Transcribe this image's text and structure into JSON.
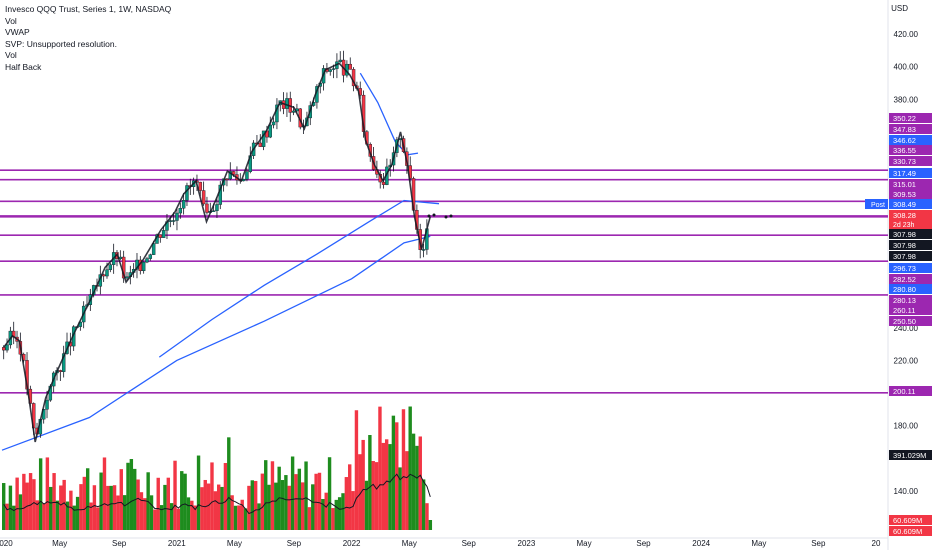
{
  "legend": {
    "title": "Invesco QQQ Trust, Series 1, 1W, NASDAQ",
    "lines": [
      "Vol",
      "VWAP",
      "SVP: Unsupported resolution.",
      "Vol",
      "Half Back"
    ]
  },
  "price_axis": {
    "currency": "USD",
    "ticks": [
      420,
      400,
      380,
      240,
      220,
      180,
      140
    ],
    "tick_labels": [
      "420.00",
      "400.00",
      "380.00",
      "240.00",
      "220.00",
      "180.00",
      "140.00"
    ]
  },
  "time_axis": {
    "labels": [
      {
        "label": "020",
        "t": 0.0
      },
      {
        "label": "May",
        "t": 0.33
      },
      {
        "label": "Sep",
        "t": 0.67
      },
      {
        "label": "2021",
        "t": 1.0
      },
      {
        "label": "May",
        "t": 1.33
      },
      {
        "label": "Sep",
        "t": 1.67
      },
      {
        "label": "2022",
        "t": 2.0
      },
      {
        "label": "May",
        "t": 2.33
      },
      {
        "label": "Sep",
        "t": 2.67
      },
      {
        "label": "2023",
        "t": 3.0
      },
      {
        "label": "May",
        "t": 3.33
      },
      {
        "label": "Sep",
        "t": 3.67
      },
      {
        "label": "2024",
        "t": 4.0
      },
      {
        "label": "May",
        "t": 4.33
      },
      {
        "label": "Sep",
        "t": 4.67
      },
      {
        "label": "20",
        "t": 5.0
      }
    ]
  },
  "price_labels": [
    {
      "text": "350.22",
      "price": 350.22,
      "color": "#9c27b0"
    },
    {
      "text": "347.83",
      "price": 347.83,
      "color": "#9c27b0"
    },
    {
      "text": "346.62",
      "price": 346.62,
      "color": "#2962ff"
    },
    {
      "text": "336.55",
      "price": 336.55,
      "color": "#9c27b0"
    },
    {
      "text": "330.73",
      "price": 330.73,
      "color": "#9c27b0"
    },
    {
      "text": "317.49",
      "price": 317.49,
      "color": "#2962ff"
    },
    {
      "text": "315.01",
      "price": 315.01,
      "color": "#9c27b0"
    },
    {
      "text": "309.53",
      "price": 309.53,
      "color": "#9c27b0"
    },
    {
      "text": "308.49",
      "price": 308.49,
      "color": "#2962ff",
      "tag": "Post"
    },
    {
      "text": "308.28",
      "price": 308.28,
      "color": "#f23645",
      "sub": "2d 23h"
    },
    {
      "text": "307.98",
      "price": 307.98,
      "color": "#131722"
    },
    {
      "text": "307.98",
      "price": 307.98,
      "color": "#131722"
    },
    {
      "text": "307.98",
      "price": 307.98,
      "color": "#131722"
    },
    {
      "text": "296.73",
      "price": 296.73,
      "color": "#2962ff"
    },
    {
      "text": "282.52",
      "price": 282.52,
      "color": "#9c27b0"
    },
    {
      "text": "280.80",
      "price": 280.8,
      "color": "#2962ff"
    },
    {
      "text": "280.13",
      "price": 280.13,
      "color": "#9c27b0"
    },
    {
      "text": "260.11",
      "price": 260.11,
      "color": "#9c27b0"
    },
    {
      "text": "250.50",
      "price": 250.5,
      "color": "#9c27b0"
    },
    {
      "text": "200.11",
      "price": 200.11,
      "color": "#9c27b0"
    },
    {
      "text": "391.029M",
      "color": "#131722",
      "volume": true
    },
    {
      "text": "60.609M",
      "color": "#f23645",
      "volume": true
    },
    {
      "text": "60.609M",
      "color": "#f23645",
      "volume": true
    }
  ],
  "colors": {
    "up": "#089981",
    "down": "#f23645",
    "volume_up": "#1e8c1e",
    "volume_down": "#f23645",
    "level_line": "#9c27b0",
    "moving_average": "#2962ff",
    "volume_ma": "#131722"
  },
  "chart_data": {
    "type": "candlestick",
    "title": "Invesco QQQ Trust, Series 1, 1W, NASDAQ",
    "symbol": "QQQ",
    "interval": "1W",
    "close_price": [
      {
        "t": 0.0,
        "price": 228
      },
      {
        "t": 0.05,
        "price": 235
      },
      {
        "t": 0.09,
        "price": 232
      },
      {
        "t": 0.14,
        "price": 200
      },
      {
        "t": 0.18,
        "price": 170
      },
      {
        "t": 0.24,
        "price": 197
      },
      {
        "t": 0.3,
        "price": 212
      },
      {
        "t": 0.4,
        "price": 236
      },
      {
        "t": 0.5,
        "price": 258
      },
      {
        "t": 0.58,
        "price": 277
      },
      {
        "t": 0.65,
        "price": 285
      },
      {
        "t": 0.7,
        "price": 268
      },
      {
        "t": 0.8,
        "price": 282
      },
      {
        "t": 0.9,
        "price": 300
      },
      {
        "t": 0.98,
        "price": 311
      },
      {
        "t": 1.03,
        "price": 322
      },
      {
        "t": 1.1,
        "price": 330
      },
      {
        "t": 1.16,
        "price": 305
      },
      {
        "t": 1.22,
        "price": 320
      },
      {
        "t": 1.28,
        "price": 336
      },
      {
        "t": 1.36,
        "price": 330
      },
      {
        "t": 1.42,
        "price": 348
      },
      {
        "t": 1.5,
        "price": 360
      },
      {
        "t": 1.58,
        "price": 378
      },
      {
        "t": 1.66,
        "price": 375
      },
      {
        "t": 1.72,
        "price": 362
      },
      {
        "t": 1.78,
        "price": 382
      },
      {
        "t": 1.84,
        "price": 398
      },
      {
        "t": 1.92,
        "price": 402
      },
      {
        "t": 1.98,
        "price": 395
      },
      {
        "t": 2.03,
        "price": 385
      },
      {
        "t": 2.07,
        "price": 355
      },
      {
        "t": 2.12,
        "price": 340
      },
      {
        "t": 2.17,
        "price": 330
      },
      {
        "t": 2.22,
        "price": 340
      },
      {
        "t": 2.27,
        "price": 360
      },
      {
        "t": 2.31,
        "price": 340
      },
      {
        "t": 2.35,
        "price": 308
      },
      {
        "t": 2.39,
        "price": 288
      },
      {
        "t": 2.42,
        "price": 300
      },
      {
        "t": 2.44,
        "price": 308
      }
    ],
    "moving_average_short": [
      {
        "t": 2.05,
        "price": 396
      },
      {
        "t": 2.15,
        "price": 378
      },
      {
        "t": 2.25,
        "price": 354
      },
      {
        "t": 2.32,
        "price": 346
      },
      {
        "t": 2.38,
        "price": 347
      }
    ],
    "moving_average_mid": [
      {
        "t": 0.9,
        "price": 222
      },
      {
        "t": 1.2,
        "price": 245
      },
      {
        "t": 1.5,
        "price": 266
      },
      {
        "t": 1.8,
        "price": 285
      },
      {
        "t": 2.1,
        "price": 305
      },
      {
        "t": 2.3,
        "price": 318
      },
      {
        "t": 2.5,
        "price": 316
      }
    ],
    "moving_average_long": [
      {
        "t": 0.0,
        "price": 165
      },
      {
        "t": 0.5,
        "price": 185
      },
      {
        "t": 1.0,
        "price": 220
      },
      {
        "t": 1.5,
        "price": 244
      },
      {
        "t": 2.0,
        "price": 270
      },
      {
        "t": 2.3,
        "price": 292
      },
      {
        "t": 2.45,
        "price": 296
      }
    ],
    "horizontal_levels": [
      336.55,
      330.73,
      317.49,
      308.49,
      307.98,
      296.73,
      280.8,
      260.11,
      200.11
    ],
    "volume_peak": "391.029M",
    "volume_last": "60.609M",
    "ylim": [
      105,
      430
    ],
    "xlim": [
      0,
      5.0
    ]
  }
}
